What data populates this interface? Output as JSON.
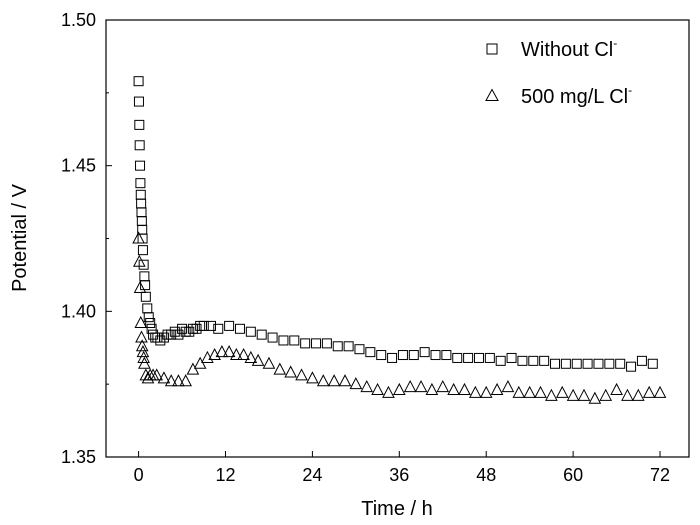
{
  "chart_data": {
    "type": "scatter",
    "xlabel": "Time / h",
    "ylabel": "Potential / V",
    "xlim": [
      -4.5,
      76
    ],
    "ylim": [
      1.35,
      1.5
    ],
    "xticks": [
      0,
      12,
      24,
      36,
      48,
      60,
      72
    ],
    "xtick_labels": [
      "0",
      "12",
      "24",
      "36",
      "48",
      "60",
      "72"
    ],
    "yticks": [
      1.35,
      1.4,
      1.45,
      1.5
    ],
    "ytick_labels": [
      "1.35",
      "1.40",
      "1.45",
      "1.50"
    ],
    "grid": false,
    "legend_position": "top-right",
    "series": [
      {
        "name": "Without Cl",
        "name_superscript": "-",
        "marker": "square",
        "x": [
          0.0,
          0.05,
          0.1,
          0.15,
          0.2,
          0.25,
          0.3,
          0.35,
          0.4,
          0.45,
          0.5,
          0.55,
          0.6,
          0.7,
          0.8,
          0.9,
          1.0,
          1.2,
          1.4,
          1.6,
          1.8,
          2.0,
          2.3,
          2.6,
          3,
          3.5,
          4,
          4.5,
          5,
          5.5,
          6,
          6.5,
          7,
          7.5,
          8,
          8.5,
          9,
          10,
          11,
          12.5,
          14,
          15.5,
          17,
          18.5,
          20,
          21.5,
          23,
          24.5,
          26,
          27.5,
          29,
          30.5,
          32,
          33.5,
          35,
          36.5,
          38,
          39.5,
          41,
          42.5,
          44,
          45.5,
          47,
          48.5,
          50,
          51.5,
          53,
          54.5,
          56,
          57.5,
          59,
          60.5,
          62,
          63.5,
          65,
          66.5,
          68,
          69.5,
          71
        ],
        "y": [
          1.479,
          1.472,
          1.464,
          1.457,
          1.45,
          1.444,
          1.44,
          1.437,
          1.434,
          1.431,
          1.428,
          1.425,
          1.421,
          1.416,
          1.412,
          1.409,
          1.405,
          1.401,
          1.398,
          1.396,
          1.394,
          1.392,
          1.391,
          1.391,
          1.39,
          1.391,
          1.392,
          1.392,
          1.393,
          1.392,
          1.394,
          1.393,
          1.393,
          1.394,
          1.394,
          1.395,
          1.395,
          1.395,
          1.394,
          1.395,
          1.394,
          1.393,
          1.392,
          1.391,
          1.39,
          1.39,
          1.389,
          1.389,
          1.389,
          1.388,
          1.388,
          1.387,
          1.386,
          1.385,
          1.384,
          1.385,
          1.385,
          1.386,
          1.385,
          1.385,
          1.384,
          1.384,
          1.384,
          1.384,
          1.383,
          1.384,
          1.383,
          1.383,
          1.383,
          1.382,
          1.382,
          1.382,
          1.382,
          1.382,
          1.382,
          1.382,
          1.381,
          1.383,
          1.382
        ]
      },
      {
        "name": "500 mg/L Cl",
        "name_superscript": "-",
        "marker": "triangle",
        "x": [
          0.0,
          0.1,
          0.2,
          0.3,
          0.4,
          0.5,
          0.6,
          0.7,
          0.8,
          1.0,
          1.3,
          1.6,
          2.0,
          2.5,
          3.5,
          4.5,
          5.5,
          6.5,
          7.5,
          8.5,
          9.5,
          10.5,
          11.5,
          12.5,
          13.5,
          14.5,
          15.5,
          16.5,
          18,
          19.5,
          21,
          22.5,
          24,
          25.5,
          27,
          28.5,
          30,
          31.5,
          33,
          34.5,
          36,
          37.5,
          39,
          40.5,
          42,
          43.5,
          45,
          46.5,
          48,
          49.5,
          51,
          52.5,
          54,
          55.5,
          57,
          58.5,
          60,
          61.5,
          63,
          64.5,
          66,
          67.5,
          69,
          70.5,
          72
        ],
        "y": [
          1.425,
          1.417,
          1.408,
          1.396,
          1.391,
          1.388,
          1.386,
          1.384,
          1.382,
          1.378,
          1.377,
          1.378,
          1.378,
          1.378,
          1.377,
          1.376,
          1.376,
          1.376,
          1.38,
          1.382,
          1.384,
          1.385,
          1.386,
          1.386,
          1.385,
          1.385,
          1.384,
          1.383,
          1.382,
          1.38,
          1.379,
          1.378,
          1.377,
          1.376,
          1.376,
          1.376,
          1.375,
          1.374,
          1.373,
          1.372,
          1.373,
          1.374,
          1.374,
          1.373,
          1.374,
          1.373,
          1.373,
          1.372,
          1.372,
          1.373,
          1.374,
          1.372,
          1.372,
          1.372,
          1.371,
          1.372,
          1.371,
          1.371,
          1.37,
          1.371,
          1.373,
          1.371,
          1.371,
          1.372,
          1.372
        ]
      }
    ]
  }
}
